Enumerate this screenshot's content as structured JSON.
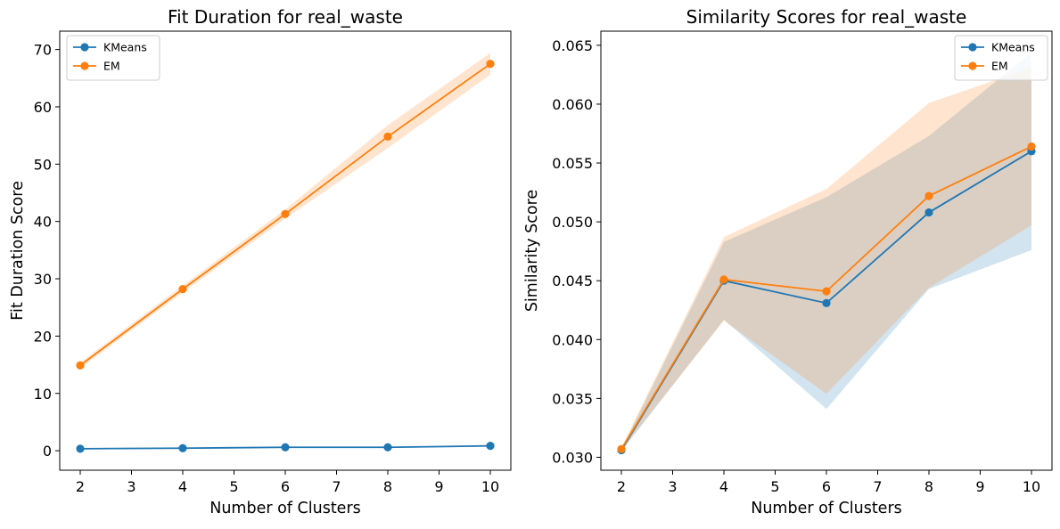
{
  "colors": {
    "kmeans": "#1f77b4",
    "em": "#ff7f0e",
    "kmeans_band": "#c6dbef",
    "em_band": "#ffdcbc"
  },
  "chart_data": [
    {
      "type": "line",
      "title": "Fit Duration for real_waste",
      "xlabel": "Number of Clusters",
      "ylabel": "Fit Duration Score",
      "xlim": [
        1.6,
        10.4
      ],
      "ylim": [
        -3.4,
        73.2
      ],
      "xticks": [
        2,
        3,
        4,
        5,
        6,
        7,
        8,
        9,
        10
      ],
      "yticks": [
        0,
        10,
        20,
        30,
        40,
        50,
        60,
        70
      ],
      "ytick_labels": [
        "0",
        "10",
        "20",
        "30",
        "40",
        "50",
        "60",
        "70"
      ],
      "legend": "top-left",
      "x": [
        2,
        4,
        6,
        8,
        10
      ],
      "series": [
        {
          "name": "KMeans",
          "color_key": "kmeans",
          "values": [
            0.35,
            0.45,
            0.6,
            0.6,
            0.85
          ],
          "lower": [
            0.3,
            0.4,
            0.5,
            0.5,
            0.7
          ],
          "upper": [
            0.4,
            0.5,
            0.7,
            0.7,
            1.0
          ]
        },
        {
          "name": "EM",
          "color_key": "em",
          "values": [
            14.9,
            28.2,
            41.3,
            54.8,
            67.5
          ],
          "lower": [
            14.4,
            27.6,
            40.5,
            52.8,
            65.6
          ],
          "upper": [
            15.4,
            28.8,
            42.1,
            56.8,
            69.4
          ]
        }
      ]
    },
    {
      "type": "line",
      "title": "Similarity Scores for real_waste",
      "xlabel": "Number of Clusters",
      "ylabel": "Similarity Score",
      "xlim": [
        1.6,
        10.4
      ],
      "ylim": [
        0.0289,
        0.0662
      ],
      "xticks": [
        2,
        3,
        4,
        5,
        6,
        7,
        8,
        9,
        10
      ],
      "yticks": [
        0.03,
        0.035,
        0.04,
        0.045,
        0.05,
        0.055,
        0.06,
        0.065
      ],
      "ytick_labels": [
        "0.030",
        "0.035",
        "0.040",
        "0.045",
        "0.050",
        "0.055",
        "0.060",
        "0.065"
      ],
      "legend": "top-right",
      "x": [
        2,
        4,
        6,
        8,
        10
      ],
      "series": [
        {
          "name": "KMeans",
          "color_key": "kmeans",
          "values": [
            0.0306,
            0.045,
            0.0431,
            0.0508,
            0.056
          ],
          "lower": [
            0.0305,
            0.0417,
            0.0341,
            0.0443,
            0.0476
          ],
          "upper": [
            0.0307,
            0.0483,
            0.0521,
            0.0573,
            0.0644
          ]
        },
        {
          "name": "EM",
          "color_key": "em",
          "values": [
            0.0307,
            0.0451,
            0.0441,
            0.0522,
            0.0564
          ],
          "lower": [
            0.0306,
            0.0416,
            0.0354,
            0.0444,
            0.0497
          ],
          "upper": [
            0.0308,
            0.0487,
            0.0528,
            0.0601,
            0.0631
          ]
        }
      ]
    }
  ]
}
